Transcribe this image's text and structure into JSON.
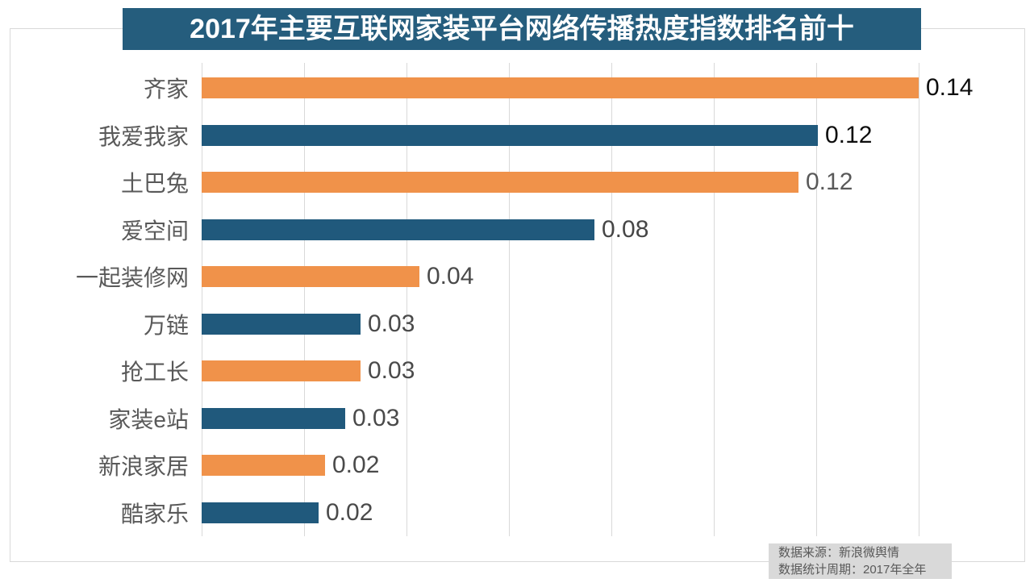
{
  "title": "2017年主要互联网家装平台网络传播热度指数排名前十",
  "footer": {
    "source": "数据来源：新浪微舆情",
    "period": "数据统计周期：2017年全年"
  },
  "colors": {
    "title_bg": "#255d7d",
    "bar_orange": "#f0924a",
    "bar_blue": "#20597c",
    "grid": "#d9d9d9",
    "category_text": "#595959",
    "footer_bg": "#d9d9d9",
    "footer_text": "#595959"
  },
  "chart_data": {
    "type": "bar",
    "orientation": "horizontal",
    "title": "2017年主要互联网家装平台网络传播热度指数排名前十",
    "categories": [
      "齐家",
      "我爱我家",
      "土巴兔",
      "爱空间",
      "一起装修网",
      "万链",
      "抢工长",
      "家装e站",
      "新浪家居",
      "酷家乐"
    ],
    "values": [
      0.14,
      0.12,
      0.12,
      0.08,
      0.04,
      0.03,
      0.03,
      0.03,
      0.02,
      0.02
    ],
    "value_labels": [
      "0.14",
      "0.12",
      "0.12",
      "0.08",
      "0.04",
      "0.03",
      "0.03",
      "0.03",
      "0.02",
      "0.02"
    ],
    "values_precise_est": [
      0.14,
      0.1203,
      0.1166,
      0.0767,
      0.0425,
      0.031,
      0.031,
      0.028,
      0.0241,
      0.0228
    ],
    "bar_colors": [
      "#f0924a",
      "#20597c",
      "#f0924a",
      "#20597c",
      "#f0924a",
      "#20597c",
      "#f0924a",
      "#20597c",
      "#f0924a",
      "#20597c"
    ],
    "value_label_colors": [
      "#0d0d0d",
      "#0d0d0d",
      "#595959",
      "#464646",
      "#4a4a4a",
      "#4a4a4a",
      "#4a4a4a",
      "#4a4a4a",
      "#4a4a4a",
      "#4a4a4a"
    ],
    "xlabel": "",
    "ylabel": "",
    "xlim": [
      0,
      0.14
    ],
    "grid": true,
    "grid_interval": 0.02,
    "legend": false,
    "data_labels": true,
    "source_note": "数据来源：新浪微舆情",
    "period_note": "数据统计周期：2017年全年"
  }
}
